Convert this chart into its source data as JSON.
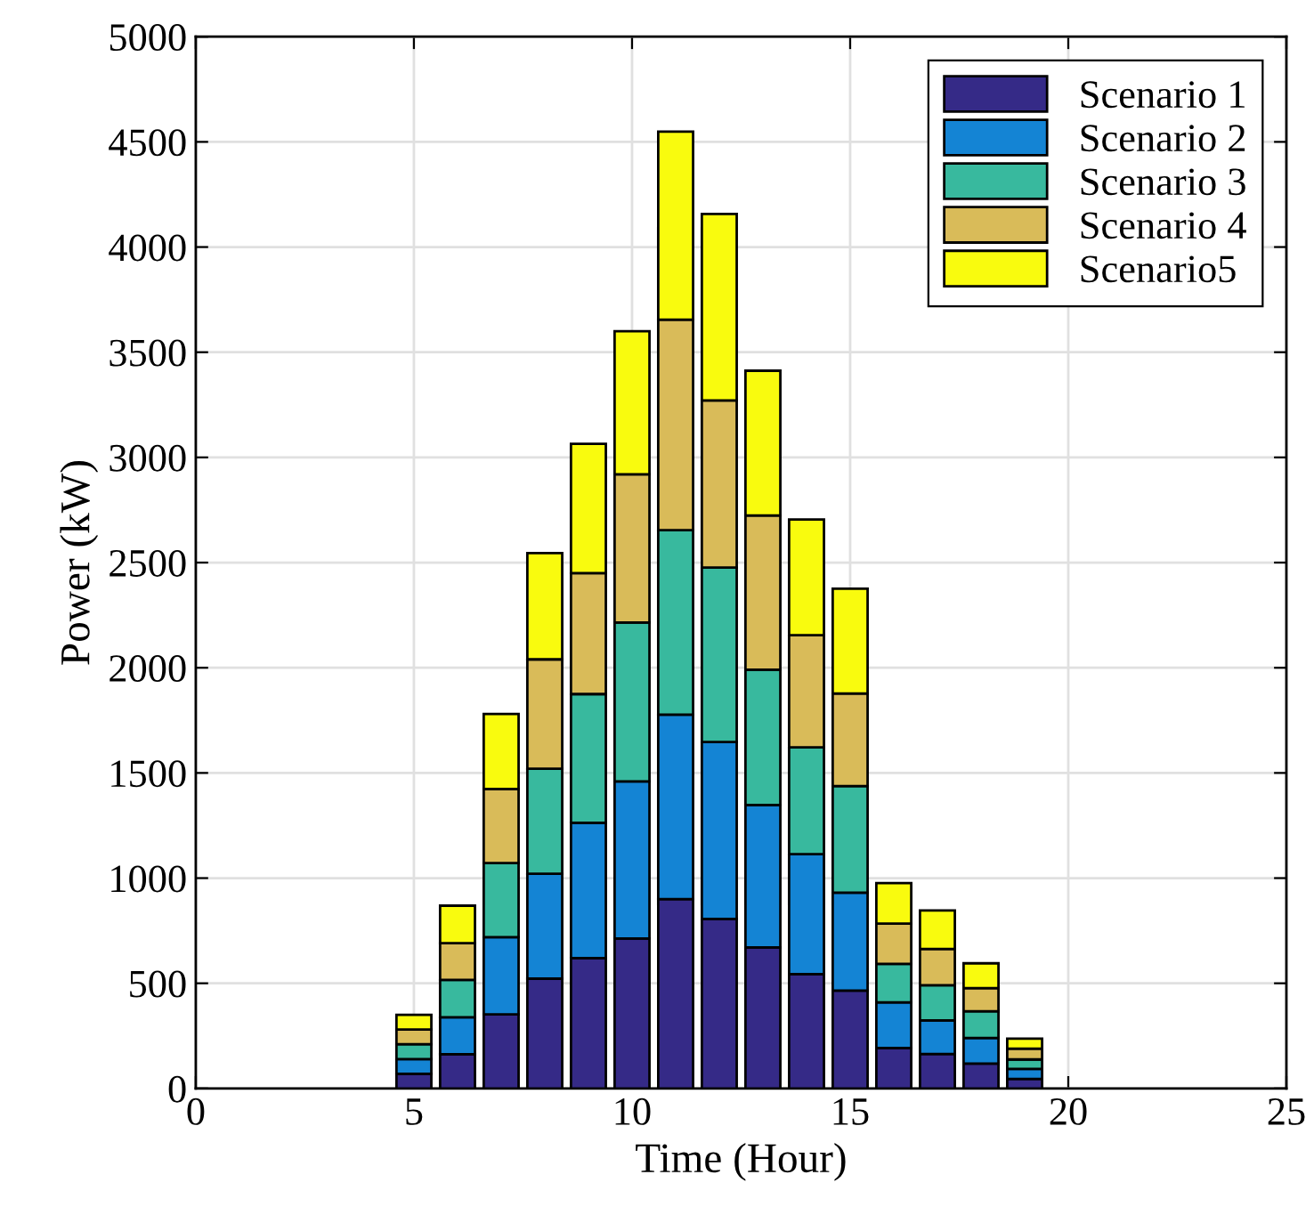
{
  "chart_data": {
    "type": "bar",
    "stacked": true,
    "xlabel": "Time (Hour)",
    "ylabel": "Power (kW)",
    "x": [
      5,
      6,
      7,
      8,
      9,
      10,
      11,
      12,
      13,
      14,
      15,
      16,
      17,
      18,
      19
    ],
    "series": [
      {
        "name": "Scenario 1",
        "color": "#352a87",
        "values": [
          70,
          163,
          352,
          522,
          620,
          713,
          900,
          806,
          671,
          544,
          465,
          192,
          164,
          118,
          45
        ]
      },
      {
        "name": "Scenario 2",
        "color": "#1484d4",
        "values": [
          70,
          175,
          367,
          499,
          643,
          747,
          877,
          841,
          677,
          570,
          466,
          217,
          160,
          122,
          48
        ]
      },
      {
        "name": "Scenario 3",
        "color": "#38b99e",
        "values": [
          70,
          178,
          353,
          499,
          612,
          755,
          877,
          829,
          643,
          508,
          507,
          183,
          167,
          127,
          45
        ]
      },
      {
        "name": "Scenario 4",
        "color": "#d9bb59",
        "values": [
          70,
          175,
          352,
          520,
          575,
          705,
          1001,
          795,
          733,
          533,
          440,
          192,
          172,
          110,
          51
        ]
      },
      {
        "name": "Scenario5",
        "color": "#f9fb0e",
        "values": [
          70,
          178,
          356,
          505,
          615,
          680,
          894,
          886,
          688,
          550,
          498,
          192,
          183,
          118,
          48
        ]
      }
    ],
    "xlim": [
      0,
      25
    ],
    "xticks": [
      0,
      5,
      10,
      15,
      20,
      25
    ],
    "ylim": [
      0,
      5000
    ],
    "yticks": [
      0,
      500,
      1000,
      1500,
      2000,
      2500,
      3000,
      3500,
      4000,
      4500,
      5000
    ],
    "grid": true,
    "legend": "top right"
  }
}
